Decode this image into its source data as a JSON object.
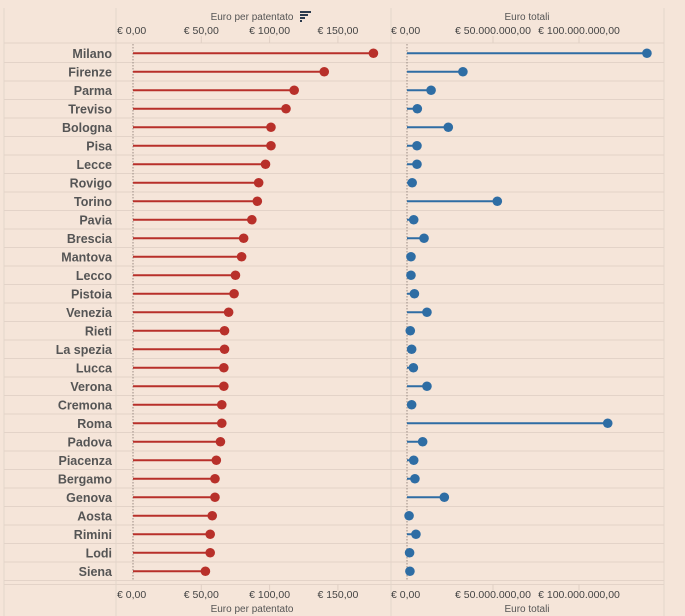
{
  "chart_data": [
    {
      "type": "lollipop",
      "title": "Euro per patentato",
      "xlabel": "Euro per patentato",
      "ylabel": "",
      "xlim": [
        0,
        180
      ],
      "ticks": [
        0,
        50,
        100,
        150
      ],
      "tick_labels": [
        "€ 0,00",
        "€ 50,00",
        "€ 100,00",
        "€ 150,00"
      ],
      "color": "#b8302a",
      "sort_icon": "sort-descending-icon",
      "categories": [
        "Milano",
        "Firenze",
        "Parma",
        "Treviso",
        "Bologna",
        "Pisa",
        "Lecce",
        "Rovigo",
        "Torino",
        "Pavia",
        "Brescia",
        "Mantova",
        "Lecco",
        "Pistoia",
        "Venezia",
        "Rieti",
        "La spezia",
        "Lucca",
        "Verona",
        "Cremona",
        "Roma",
        "Padova",
        "Piacenza",
        "Bergamo",
        "Genova",
        "Aosta",
        "Rimini",
        "Lodi",
        "Siena"
      ],
      "values": [
        176,
        140,
        118,
        112,
        101,
        101,
        97,
        92,
        91,
        87,
        81,
        79.5,
        75,
        74,
        70,
        67,
        67,
        66.5,
        66.5,
        65,
        65,
        64,
        61,
        60,
        60,
        58,
        56.5,
        56.5,
        53
      ]
    },
    {
      "type": "lollipop",
      "title": "Euro totali",
      "xlabel": "Euro totali",
      "ylabel": "",
      "xlim": [
        0,
        150000000
      ],
      "ticks": [
        0,
        50000000,
        100000000
      ],
      "tick_labels": [
        "€ 0,00",
        "€ 50.000.000,00",
        "€ 100.000.000,00"
      ],
      "color": "#2e6da4",
      "categories": [
        "Milano",
        "Firenze",
        "Parma",
        "Treviso",
        "Bologna",
        "Pisa",
        "Lecce",
        "Rovigo",
        "Torino",
        "Pavia",
        "Brescia",
        "Mantova",
        "Lecco",
        "Pistoia",
        "Venezia",
        "Rieti",
        "La spezia",
        "Lucca",
        "Verona",
        "Cremona",
        "Roma",
        "Padova",
        "Piacenza",
        "Bergamo",
        "Genova",
        "Aosta",
        "Rimini",
        "Lodi",
        "Siena"
      ],
      "values": [
        139500000,
        32500000,
        14000000,
        6000000,
        24000000,
        5800000,
        5800000,
        3000000,
        52500000,
        3900000,
        9900000,
        2300000,
        2300000,
        4300000,
        11600000,
        1900000,
        2700000,
        3700000,
        11600000,
        2700000,
        116700000,
        9100000,
        3900000,
        4600000,
        21700000,
        1200000,
        5200000,
        1500000,
        1700000
      ]
    }
  ]
}
